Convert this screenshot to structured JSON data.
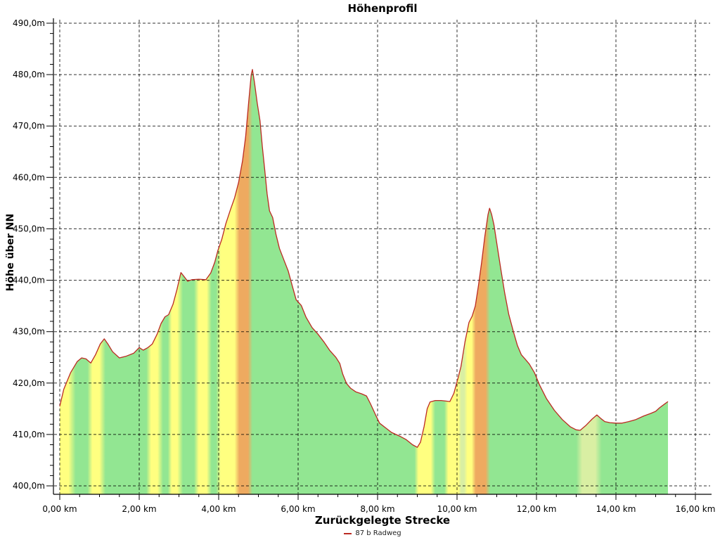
{
  "colors": {
    "background": "#ffffff",
    "grid": "#000000",
    "axis": "#000000",
    "line": "#bb2a22",
    "grades": {
      "green": "#92e692",
      "yellow": "#ffff80",
      "orange": "#eeaa60",
      "yellow_green": "#d9efa3"
    }
  },
  "chart_data": {
    "type": "area",
    "title": "Höhenprofil",
    "xlabel": "Zurückgelegte Strecke",
    "ylabel": "Höhe über NN",
    "legend": {
      "label": "87 b Radweg"
    },
    "legend_position": "bottom",
    "grid": true,
    "xlim": [
      0,
      16
    ],
    "ylim": [
      400,
      490
    ],
    "x_unit": "km",
    "y_unit": "m",
    "x_tick_values": [
      0,
      2,
      4,
      6,
      8,
      10,
      12,
      14,
      16
    ],
    "x_tick_labels": [
      "0,00 km",
      "2,00 km",
      "4,00 km",
      "6,00 km",
      "8,00 km",
      "10,00 km",
      "12,00 km",
      "14,00 km",
      "16,00 km"
    ],
    "y_tick_values": [
      490,
      480,
      470,
      460,
      450,
      440,
      430,
      420,
      410,
      400
    ],
    "y_tick_labels": [
      "490,0m",
      "480,0m",
      "470,0m",
      "460,0m",
      "450,0m",
      "440,0m",
      "430,0m",
      "420,0m",
      "410,0m",
      "400,0m"
    ],
    "series": [
      {
        "name": "87 b Radweg",
        "color": "#bb2a22",
        "points": [
          [
            0.0,
            415.5
          ],
          [
            0.1,
            418.8
          ],
          [
            0.27,
            422.0
          ],
          [
            0.44,
            424.2
          ],
          [
            0.55,
            424.9
          ],
          [
            0.66,
            424.7
          ],
          [
            0.78,
            423.9
          ],
          [
            0.9,
            425.5
          ],
          [
            1.02,
            427.6
          ],
          [
            1.12,
            428.6
          ],
          [
            1.22,
            427.5
          ],
          [
            1.33,
            426.1
          ],
          [
            1.5,
            424.9
          ],
          [
            1.66,
            425.2
          ],
          [
            1.86,
            425.8
          ],
          [
            2.0,
            426.9
          ],
          [
            2.1,
            426.4
          ],
          [
            2.22,
            426.9
          ],
          [
            2.33,
            427.6
          ],
          [
            2.45,
            429.5
          ],
          [
            2.55,
            431.6
          ],
          [
            2.65,
            432.9
          ],
          [
            2.74,
            433.3
          ],
          [
            2.85,
            435.3
          ],
          [
            2.95,
            438.2
          ],
          [
            3.05,
            441.5
          ],
          [
            3.12,
            440.8
          ],
          [
            3.22,
            439.8
          ],
          [
            3.32,
            440.1
          ],
          [
            3.5,
            440.2
          ],
          [
            3.68,
            440.1
          ],
          [
            3.8,
            441.4
          ],
          [
            3.9,
            443.5
          ],
          [
            3.98,
            445.8
          ],
          [
            4.08,
            448.0
          ],
          [
            4.18,
            451.0
          ],
          [
            4.3,
            453.8
          ],
          [
            4.4,
            456.0
          ],
          [
            4.5,
            459.0
          ],
          [
            4.6,
            463.2
          ],
          [
            4.68,
            468.0
          ],
          [
            4.76,
            475.0
          ],
          [
            4.82,
            480.0
          ],
          [
            4.85,
            481.0
          ],
          [
            4.9,
            478.5
          ],
          [
            4.97,
            474.5
          ],
          [
            5.04,
            471.0
          ],
          [
            5.1,
            466.0
          ],
          [
            5.16,
            461.5
          ],
          [
            5.22,
            456.8
          ],
          [
            5.28,
            453.5
          ],
          [
            5.36,
            452.2
          ],
          [
            5.44,
            449.0
          ],
          [
            5.53,
            446.2
          ],
          [
            5.65,
            443.8
          ],
          [
            5.75,
            441.8
          ],
          [
            5.85,
            439.0
          ],
          [
            5.95,
            436.2
          ],
          [
            6.08,
            435.1
          ],
          [
            6.2,
            432.8
          ],
          [
            6.35,
            430.8
          ],
          [
            6.5,
            429.5
          ],
          [
            6.65,
            428.0
          ],
          [
            6.8,
            426.3
          ],
          [
            6.95,
            425.0
          ],
          [
            7.05,
            423.8
          ],
          [
            7.12,
            421.8
          ],
          [
            7.22,
            419.9
          ],
          [
            7.32,
            419.0
          ],
          [
            7.45,
            418.3
          ],
          [
            7.6,
            417.9
          ],
          [
            7.72,
            417.5
          ],
          [
            7.82,
            416.0
          ],
          [
            7.95,
            413.8
          ],
          [
            8.05,
            412.2
          ],
          [
            8.2,
            411.3
          ],
          [
            8.35,
            410.4
          ],
          [
            8.55,
            409.7
          ],
          [
            8.72,
            409.0
          ],
          [
            8.88,
            408.0
          ],
          [
            9.0,
            407.5
          ],
          [
            9.08,
            408.5
          ],
          [
            9.17,
            411.5
          ],
          [
            9.25,
            415.0
          ],
          [
            9.32,
            416.3
          ],
          [
            9.45,
            416.6
          ],
          [
            9.6,
            416.6
          ],
          [
            9.72,
            416.5
          ],
          [
            9.82,
            416.4
          ],
          [
            9.92,
            418.0
          ],
          [
            10.02,
            420.8
          ],
          [
            10.1,
            423.2
          ],
          [
            10.2,
            428.0
          ],
          [
            10.3,
            431.8
          ],
          [
            10.38,
            433.0
          ],
          [
            10.46,
            435.0
          ],
          [
            10.54,
            439.0
          ],
          [
            10.62,
            443.5
          ],
          [
            10.7,
            448.5
          ],
          [
            10.78,
            452.8
          ],
          [
            10.82,
            454.0
          ],
          [
            10.87,
            452.8
          ],
          [
            10.93,
            450.8
          ],
          [
            11.01,
            446.7
          ],
          [
            11.1,
            442.3
          ],
          [
            11.2,
            437.5
          ],
          [
            11.3,
            433.4
          ],
          [
            11.42,
            430.0
          ],
          [
            11.52,
            427.3
          ],
          [
            11.62,
            425.5
          ],
          [
            11.72,
            424.6
          ],
          [
            11.82,
            423.7
          ],
          [
            11.95,
            422.0
          ],
          [
            12.08,
            419.6
          ],
          [
            12.25,
            417.0
          ],
          [
            12.45,
            414.7
          ],
          [
            12.65,
            412.9
          ],
          [
            12.85,
            411.5
          ],
          [
            13.0,
            410.9
          ],
          [
            13.1,
            410.8
          ],
          [
            13.25,
            411.8
          ],
          [
            13.4,
            413.0
          ],
          [
            13.52,
            413.8
          ],
          [
            13.62,
            413.1
          ],
          [
            13.72,
            412.5
          ],
          [
            13.85,
            412.3
          ],
          [
            14.0,
            412.2
          ],
          [
            14.15,
            412.2
          ],
          [
            14.32,
            412.5
          ],
          [
            14.5,
            412.9
          ],
          [
            14.7,
            413.6
          ],
          [
            14.88,
            414.1
          ],
          [
            15.0,
            414.5
          ],
          [
            15.1,
            415.2
          ],
          [
            15.22,
            415.9
          ],
          [
            15.31,
            416.4
          ]
        ]
      }
    ],
    "grade_bands": [
      [
        0.0,
        "yellow"
      ],
      [
        0.22,
        "yellow"
      ],
      [
        0.4,
        "green"
      ],
      [
        0.7,
        "green"
      ],
      [
        0.82,
        "yellow"
      ],
      [
        1.0,
        "yellow"
      ],
      [
        1.15,
        "green"
      ],
      [
        2.18,
        "green"
      ],
      [
        2.3,
        "yellow"
      ],
      [
        2.46,
        "yellow"
      ],
      [
        2.6,
        "green"
      ],
      [
        2.72,
        "green"
      ],
      [
        2.82,
        "yellow"
      ],
      [
        2.96,
        "yellow"
      ],
      [
        3.1,
        "green"
      ],
      [
        3.38,
        "green"
      ],
      [
        3.5,
        "yellow"
      ],
      [
        3.7,
        "yellow"
      ],
      [
        3.82,
        "green"
      ],
      [
        3.94,
        "green"
      ],
      [
        4.05,
        "yellow"
      ],
      [
        4.4,
        "yellow"
      ],
      [
        4.52,
        "orange"
      ],
      [
        4.74,
        "orange"
      ],
      [
        4.85,
        "green"
      ],
      [
        8.93,
        "green"
      ],
      [
        9.03,
        "yellow"
      ],
      [
        9.34,
        "yellow"
      ],
      [
        9.45,
        "green"
      ],
      [
        9.68,
        "green"
      ],
      [
        9.78,
        "yellow"
      ],
      [
        10.03,
        "yellow"
      ],
      [
        10.1,
        "yellow_green"
      ],
      [
        10.18,
        "yellow_green"
      ],
      [
        10.26,
        "yellow"
      ],
      [
        10.37,
        "yellow"
      ],
      [
        10.47,
        "orange"
      ],
      [
        10.72,
        "orange"
      ],
      [
        10.83,
        "green"
      ],
      [
        13.0,
        "green"
      ],
      [
        13.15,
        "yellow_green"
      ],
      [
        13.48,
        "yellow_green"
      ],
      [
        13.64,
        "green"
      ],
      [
        15.31,
        "green"
      ]
    ]
  }
}
